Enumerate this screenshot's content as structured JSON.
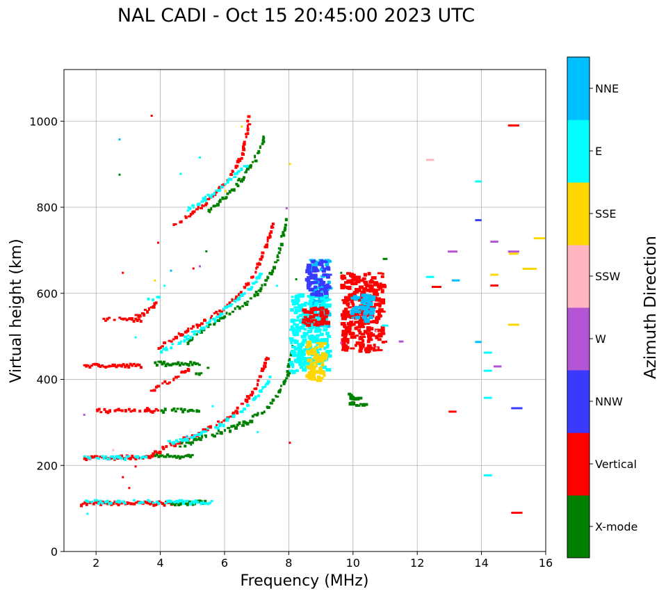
{
  "chart_data": {
    "type": "scatter",
    "title": "NAL CADI - Oct 15 20:45:00 2023 UTC",
    "xlabel": "Frequency (MHz)",
    "ylabel": "Virtual height (km)",
    "xlim": [
      1,
      16
    ],
    "ylim": [
      0,
      1120
    ],
    "xticks": [
      2,
      4,
      6,
      8,
      10,
      12,
      14,
      16
    ],
    "yticks": [
      0,
      200,
      400,
      600,
      800,
      1000
    ],
    "grid": true,
    "colorbar": {
      "title": "Azimuth Direction",
      "categories": [
        {
          "label": "X-mode",
          "color": "#008000"
        },
        {
          "label": "Vertical",
          "color": "#ff0000"
        },
        {
          "label": "NNW",
          "color": "#3a3aff"
        },
        {
          "label": "W",
          "color": "#b455d6"
        },
        {
          "label": "SSW",
          "color": "#ffb6c1"
        },
        {
          "label": "SSE",
          "color": "#ffd700"
        },
        {
          "label": "E",
          "color": "#00ffff"
        },
        {
          "label": "NNE",
          "color": "#00bfff"
        }
      ]
    },
    "traces": [
      {
        "category": "Vertical",
        "x0": 1.5,
        "x1": 4.5,
        "y": 115,
        "dense": true
      },
      {
        "category": "X-mode",
        "x0": 4.2,
        "x1": 5.4,
        "y": 117,
        "dense": true
      },
      {
        "category": "E",
        "x0": 1.6,
        "x1": 5.6,
        "y": 118,
        "dense": false
      },
      {
        "category": "Vertical",
        "x0": 1.6,
        "x1": 3.8,
        "y": 222,
        "dense": true
      },
      {
        "category": "E",
        "x0": 1.6,
        "x1": 3.6,
        "y": 221,
        "dense": false
      },
      {
        "category": "X-mode",
        "x0": 3.8,
        "x1": 5.0,
        "y": 225,
        "dense": true
      },
      {
        "category": "Vertical",
        "x0": 2.0,
        "x1": 3.6,
        "y": 330,
        "dense": false
      },
      {
        "category": "Vertical",
        "x0": 3.5,
        "x1": 3.9,
        "y": 332,
        "dense": true
      },
      {
        "category": "X-mode",
        "x0": 4.0,
        "x1": 5.2,
        "y": 332,
        "dense": false
      },
      {
        "category": "Vertical",
        "x0": 1.6,
        "x1": 3.4,
        "y": 435,
        "dense": true
      },
      {
        "category": "X-mode",
        "x0": 3.8,
        "x1": 5.2,
        "y": 440,
        "dense": true
      },
      {
        "category": "Vertical",
        "x0": 2.2,
        "x1": 3.4,
        "y": 542,
        "dense": false
      }
    ],
    "curves": [
      {
        "category": "Vertical",
        "points": [
          [
            3.6,
            225
          ],
          [
            4.2,
            248
          ],
          [
            5.0,
            272
          ],
          [
            5.6,
            292
          ],
          [
            6.2,
            320
          ],
          [
            6.6,
            352
          ],
          [
            7.0,
            392
          ],
          [
            7.3,
            460
          ]
        ]
      },
      {
        "category": "X-mode",
        "points": [
          [
            4.6,
            250
          ],
          [
            5.4,
            270
          ],
          [
            6.2,
            290
          ],
          [
            6.8,
            310
          ],
          [
            7.2,
            330
          ],
          [
            7.6,
            365
          ],
          [
            7.9,
            410
          ],
          [
            8.1,
            480
          ]
        ]
      },
      {
        "category": "E",
        "points": [
          [
            4.2,
            255
          ],
          [
            5.0,
            270
          ],
          [
            5.8,
            295
          ],
          [
            6.4,
            325
          ],
          [
            7.0,
            365
          ],
          [
            7.4,
            410
          ]
        ]
      },
      {
        "category": "Vertical",
        "points": [
          [
            3.7,
            378
          ],
          [
            4.4,
            405
          ],
          [
            4.9,
            432
          ]
        ]
      },
      {
        "category": "X-mode",
        "points": [
          [
            5.0,
            413
          ],
          [
            5.5,
            428
          ]
        ]
      },
      {
        "category": "Vertical",
        "points": [
          [
            3.8,
            470
          ],
          [
            4.5,
            505
          ],
          [
            5.2,
            530
          ],
          [
            5.8,
            560
          ],
          [
            6.4,
            600
          ],
          [
            6.9,
            650
          ],
          [
            7.3,
            720
          ],
          [
            7.5,
            770
          ]
        ]
      },
      {
        "category": "X-mode",
        "points": [
          [
            4.8,
            490
          ],
          [
            5.5,
            530
          ],
          [
            6.2,
            560
          ],
          [
            6.8,
            590
          ],
          [
            7.2,
            625
          ],
          [
            7.6,
            680
          ],
          [
            7.9,
            780
          ]
        ]
      },
      {
        "category": "E",
        "points": [
          [
            4.0,
            470
          ],
          [
            4.8,
            500
          ],
          [
            5.6,
            540
          ],
          [
            6.2,
            580
          ],
          [
            6.8,
            620
          ],
          [
            7.2,
            660
          ]
        ]
      },
      {
        "category": "Vertical",
        "points": [
          [
            4.4,
            765
          ],
          [
            5.0,
            790
          ],
          [
            5.6,
            830
          ],
          [
            6.2,
            880
          ],
          [
            6.5,
            925
          ],
          [
            6.7,
            990
          ],
          [
            6.7,
            1015
          ]
        ]
      },
      {
        "category": "X-mode",
        "points": [
          [
            5.4,
            790
          ],
          [
            5.9,
            820
          ],
          [
            6.4,
            860
          ],
          [
            6.8,
            900
          ],
          [
            7.1,
            940
          ],
          [
            7.2,
            975
          ]
        ]
      },
      {
        "category": "E",
        "points": [
          [
            4.8,
            795
          ],
          [
            5.5,
            830
          ],
          [
            6.2,
            870
          ],
          [
            6.7,
            905
          ]
        ]
      },
      {
        "category": "Vertical",
        "points": [
          [
            3.0,
            545
          ],
          [
            3.4,
            555
          ],
          [
            3.9,
            580
          ]
        ]
      },
      {
        "category": "E",
        "points": [
          [
            3.6,
            590
          ],
          [
            4.0,
            598
          ]
        ]
      }
    ],
    "blobs": [
      {
        "category": "NNE",
        "x0": 8.6,
        "x1": 9.2,
        "y0": 520,
        "y1": 680
      },
      {
        "category": "E",
        "x0": 8.0,
        "x1": 9.2,
        "y0": 420,
        "y1": 600
      },
      {
        "category": "Vertical",
        "x0": 8.4,
        "x1": 9.2,
        "y0": 530,
        "y1": 570
      },
      {
        "category": "SSE",
        "x0": 8.5,
        "x1": 9.1,
        "y0": 400,
        "y1": 490
      },
      {
        "category": "NNW",
        "x0": 8.5,
        "x1": 9.2,
        "y0": 600,
        "y1": 680
      },
      {
        "category": "Vertical",
        "x0": 9.6,
        "x1": 10.9,
        "y0": 470,
        "y1": 650
      },
      {
        "category": "NNE",
        "x0": 9.9,
        "x1": 10.6,
        "y0": 540,
        "y1": 600
      },
      {
        "category": "X-mode",
        "x0": 9.8,
        "x1": 10.3,
        "y0": 340,
        "y1": 370
      }
    ],
    "segments": [
      {
        "category": "Vertical",
        "x": 15.0,
        "y": 990,
        "w": 0.35
      },
      {
        "category": "SSW",
        "x": 12.4,
        "y": 910,
        "w": 0.25
      },
      {
        "category": "E",
        "x": 13.9,
        "y": 860,
        "w": 0.2
      },
      {
        "category": "NNW",
        "x": 13.9,
        "y": 770,
        "w": 0.2
      },
      {
        "category": "SSE",
        "x": 15.8,
        "y": 728,
        "w": 0.35
      },
      {
        "category": "W",
        "x": 14.4,
        "y": 720,
        "w": 0.25
      },
      {
        "category": "W",
        "x": 15.0,
        "y": 697,
        "w": 0.35
      },
      {
        "category": "SSE",
        "x": 15.0,
        "y": 692,
        "w": 0.3
      },
      {
        "category": "W",
        "x": 13.1,
        "y": 697,
        "w": 0.3
      },
      {
        "category": "SSE",
        "x": 15.5,
        "y": 657,
        "w": 0.45
      },
      {
        "category": "SSE",
        "x": 14.4,
        "y": 643,
        "w": 0.25
      },
      {
        "category": "E",
        "x": 12.4,
        "y": 638,
        "w": 0.25
      },
      {
        "category": "NNE",
        "x": 13.2,
        "y": 630,
        "w": 0.25
      },
      {
        "category": "Vertical",
        "x": 12.6,
        "y": 615,
        "w": 0.3
      },
      {
        "category": "Vertical",
        "x": 14.4,
        "y": 618,
        "w": 0.25
      },
      {
        "category": "SSE",
        "x": 15.0,
        "y": 527,
        "w": 0.35
      },
      {
        "category": "NNE",
        "x": 13.9,
        "y": 487,
        "w": 0.2
      },
      {
        "category": "W",
        "x": 11.5,
        "y": 488,
        "w": 0.15
      },
      {
        "category": "E",
        "x": 14.2,
        "y": 462,
        "w": 0.25
      },
      {
        "category": "W",
        "x": 14.5,
        "y": 430,
        "w": 0.25
      },
      {
        "category": "E",
        "x": 14.2,
        "y": 420,
        "w": 0.25
      },
      {
        "category": "E",
        "x": 14.2,
        "y": 357,
        "w": 0.25
      },
      {
        "category": "NNW",
        "x": 15.1,
        "y": 333,
        "w": 0.35
      },
      {
        "category": "Vertical",
        "x": 13.1,
        "y": 325,
        "w": 0.25
      },
      {
        "category": "E",
        "x": 14.2,
        "y": 177,
        "w": 0.25
      },
      {
        "category": "Vertical",
        "x": 15.1,
        "y": 90,
        "w": 0.35
      },
      {
        "category": "E",
        "x": 11.0,
        "y": 525,
        "w": 0.2
      },
      {
        "category": "X-mode",
        "x": 11.0,
        "y": 680,
        "w": 0.15
      }
    ],
    "specks": [
      [
        1.7,
        90,
        "E"
      ],
      [
        3.7,
        1015,
        "Vertical"
      ],
      [
        2.7,
        960,
        "NNE"
      ],
      [
        2.7,
        878,
        "X-mode"
      ],
      [
        4.6,
        880,
        "E"
      ],
      [
        5.2,
        918,
        "E"
      ],
      [
        8.0,
        903,
        "SSE"
      ],
      [
        7.9,
        800,
        "W"
      ],
      [
        3.9,
        720,
        "Vertical"
      ],
      [
        5.4,
        700,
        "X-mode"
      ],
      [
        4.3,
        655,
        "NNE"
      ],
      [
        5.2,
        665,
        "W"
      ],
      [
        3.8,
        632,
        "SSE"
      ],
      [
        4.1,
        620,
        "E"
      ],
      [
        2.8,
        650,
        "Vertical"
      ],
      [
        7.6,
        620,
        "E"
      ],
      [
        8.2,
        635,
        "X-mode"
      ],
      [
        2.5,
        238,
        "SSW"
      ],
      [
        2.8,
        175,
        "Vertical"
      ],
      [
        3.0,
        150,
        "Vertical"
      ],
      [
        3.2,
        200,
        "Vertical"
      ],
      [
        8.0,
        255,
        "Vertical"
      ],
      [
        5.6,
        340,
        "E"
      ],
      [
        1.6,
        320,
        "W"
      ],
      [
        9.6,
        650,
        "X-mode"
      ],
      [
        10.7,
        475,
        "SSW"
      ],
      [
        10.7,
        515,
        "SSW"
      ],
      [
        11.0,
        490,
        "Vertical"
      ],
      [
        9.6,
        487,
        "W"
      ],
      [
        10.2,
        345,
        "X-mode"
      ],
      [
        3.2,
        500,
        "E"
      ],
      [
        4.8,
        270,
        "NNE"
      ],
      [
        7.0,
        280,
        "E"
      ],
      [
        6.0,
        840,
        "SSE"
      ],
      [
        6.5,
        990,
        "SSE"
      ],
      [
        5.0,
        660,
        "Vertical"
      ]
    ]
  }
}
